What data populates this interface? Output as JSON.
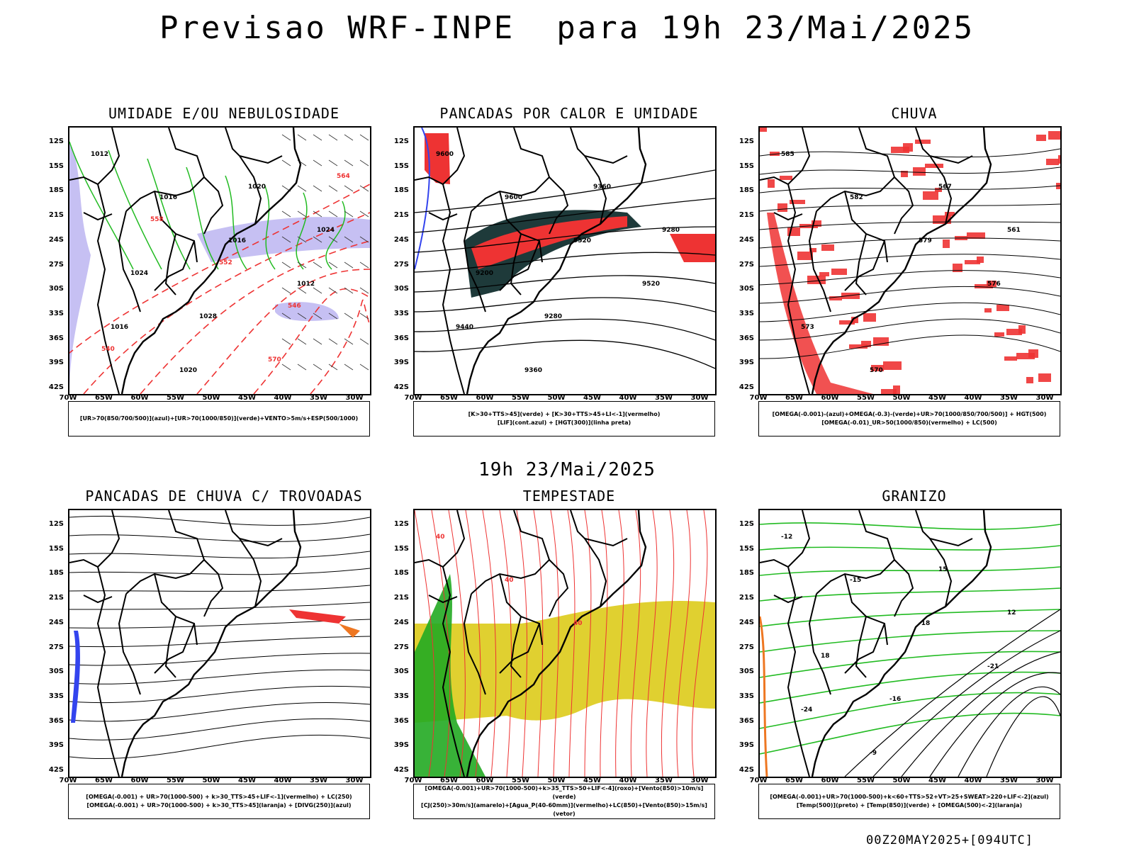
{
  "title": "Previsao WRF-INPE  para 19h 23/Mai/2025",
  "mid_label": "19h 23/Mai/2025",
  "footer": "00Z20MAY2025+[094UTC]",
  "lat_ticks": [
    "12S",
    "15S",
    "18S",
    "21S",
    "24S",
    "27S",
    "30S",
    "33S",
    "36S",
    "39S",
    "42S"
  ],
  "lon_ticks": [
    "70W",
    "65W",
    "60W",
    "55W",
    "50W",
    "45W",
    "40W",
    "35W",
    "30W"
  ],
  "colors": {
    "green": "#22bb22",
    "red": "#ee3333",
    "blue": "#3344ee",
    "lavender": "#b8b0f0",
    "dark": "#1e3a3a",
    "yellow": "#e0d030",
    "orange": "#ee7722",
    "black": "#000000"
  },
  "panels": [
    {
      "id": "umidade",
      "title": "UMIDADE E/OU NEBULOSIDADE",
      "legend": [
        "[UR>70(850/700/500)](azul)+[UR>70(1000/850)](verde)+VENTO>5m/s+ESP(500/1000)"
      ],
      "contour_labels": [
        "1012",
        "1016",
        "1016",
        "1012",
        "1016",
        "1020",
        "1020",
        "1024",
        "1024",
        "1028",
        "570",
        "564",
        "558",
        "552",
        "546",
        "540"
      ]
    },
    {
      "id": "pancadas",
      "title": "PANCADAS POR CALOR E UMIDADE",
      "legend": [
        "[K>30+TTS>45](verde) + [K>30+TTS>45+LI<-1](vermelho)",
        "[LIF](cont.azul) + [HGT(300)](linha preta)"
      ],
      "contour_labels": [
        "9600",
        "9600",
        "9520",
        "9520",
        "9440",
        "9360",
        "9360",
        "9280",
        "9200",
        "9280"
      ]
    },
    {
      "id": "chuva",
      "title": "CHUVA",
      "legend": [
        "[OMEGA(-0.001)-(azul)+OMEGA(-0.3)-(verde)+UR>70(1000/850/700/500)] + HGT(500)",
        "[OMEGA(-0.01)_UR>50(1000/850)(vermelho) + LC(500)"
      ],
      "contour_labels": [
        "585",
        "582",
        "579",
        "576",
        "573",
        "570",
        "567",
        "561"
      ]
    },
    {
      "id": "trovoadas",
      "title": "PANCADAS DE CHUVA C/ TROVOADAS",
      "legend": [
        "[OMEGA(-0.001) + UR>70(1000-500) + k>30_TTS>45+LIF<-1](vermelho) + LC(250)",
        "[OMEGA(-0.001) + UR>70(1000-500) + k>30_TTS>45](laranja) + [DIVG(250)](azul)"
      ],
      "contour_labels": []
    },
    {
      "id": "tempestade",
      "title": "TEMPESTADE",
      "legend": [
        "[OMEGA(-0.001)+UR>70(1000-500)+k>35_TTS>50+LIF<-4](roxo)+[Vento(850)>10m/s](verde)",
        "[CJ(250)>30m/s](amarelo)+[Agua_P(40-60mm)](vermelho)+LC(850)+[Vento(850)>15m/s](vetor)"
      ],
      "contour_labels": [
        "40",
        "40",
        "40"
      ]
    },
    {
      "id": "granizo",
      "title": "GRANIZO",
      "legend": [
        "[OMEGA(-0.001)+UR>70(1000-500)+k<60+TTS>52+VT>25+SWEAT>220+LIF<-2](azul)",
        "[Temp(500)](preto) + [Temp(850)](verde) + [OMEGA(500)<-2](laranja)"
      ],
      "contour_labels": [
        "-12",
        "-15",
        "-18",
        "-21",
        "-24",
        "-9",
        "15",
        "12",
        "18",
        "-16"
      ]
    }
  ]
}
